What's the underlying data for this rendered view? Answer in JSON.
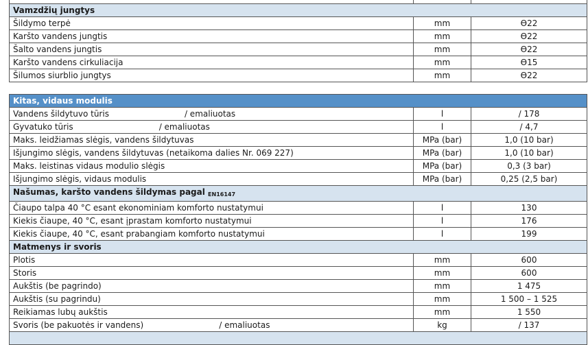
{
  "table1": {
    "header": "Vamzdžių jungtys",
    "rows": [
      {
        "label": "Šildymo terpė",
        "unit": "mm",
        "value": "Ѳ22"
      },
      {
        "label": "Karšto vandens jungtis",
        "unit": "mm",
        "value": "Ѳ22"
      },
      {
        "label": "Šalto vandens jungtis",
        "unit": "mm",
        "value": "Ѳ22"
      },
      {
        "label": "Karšto vandens cirkuliacija",
        "unit": "mm",
        "value": "Ѳ15"
      },
      {
        "label": "Šilumos siurblio jungtys",
        "unit": "mm",
        "value": "Ѳ22"
      }
    ]
  },
  "table2": {
    "header": "Kitas, vidaus modulis",
    "rows": [
      {
        "label": "Vandens šildytuvo tūris",
        "label2": "/ emaliuotas",
        "unit": "l",
        "value": "/ 178"
      },
      {
        "label": "Gyvatuko tūris",
        "label2": "/ emaliuotas",
        "unit": "l",
        "value": "/ 4,7"
      },
      {
        "label": "Maks. leidžiamas slėgis, vandens šildytuvas",
        "unit": "MPa (bar)",
        "value": "1,0 (10 bar)"
      },
      {
        "label": "Išjungimo slėgis, vandens šildytuvas (netaikoma dalies Nr. 069 227)",
        "unit": "MPa (bar)",
        "value": "1,0 (10 bar)"
      },
      {
        "label": "Maks. leistinas vidaus modulio slėgis",
        "unit": "MPa (bar)",
        "value": "0,3 (3 bar)"
      },
      {
        "label": "Išjungimo slėgis, vidaus modulis",
        "unit": "MPa (bar)",
        "value": "0,25 (2,5 bar)"
      }
    ],
    "perf_header": "Našumas, karšto vandens šildymas pagal",
    "perf_sub": "EN16147",
    "perf_rows": [
      {
        "label": "Čiaupo talpa 40 °C esant ekonominiam komforto nustatymui",
        "unit": "l",
        "value": "130"
      },
      {
        "label": "Kiekis čiaupe, 40 °C, esant įprastam komforto nustatymui",
        "unit": "l",
        "value": "176"
      },
      {
        "label": "Kiekis čiaupe, 40 °C, esant prabangiam komforto nustatymui",
        "unit": "l",
        "value": "199"
      }
    ],
    "dim_header": "Matmenys ir svoris",
    "dim_rows": [
      {
        "label": "Plotis",
        "unit": "mm",
        "value": "600"
      },
      {
        "label": "Storis",
        "unit": "mm",
        "value": "600"
      },
      {
        "label": "Aukštis (be pagrindo)",
        "unit": "mm",
        "value": "1 475"
      },
      {
        "label": "Aukštis (su pagrindu)",
        "unit": "mm",
        "value": "1 500 – 1 525"
      },
      {
        "label": "Reikiamas lubų aukštis",
        "unit": "mm",
        "value": "1 550"
      },
      {
        "label": "Svoris (be pakuotės ir vandens)",
        "label2": "/ emaliuotas",
        "unit": "kg",
        "value": "/ 137"
      }
    ]
  }
}
